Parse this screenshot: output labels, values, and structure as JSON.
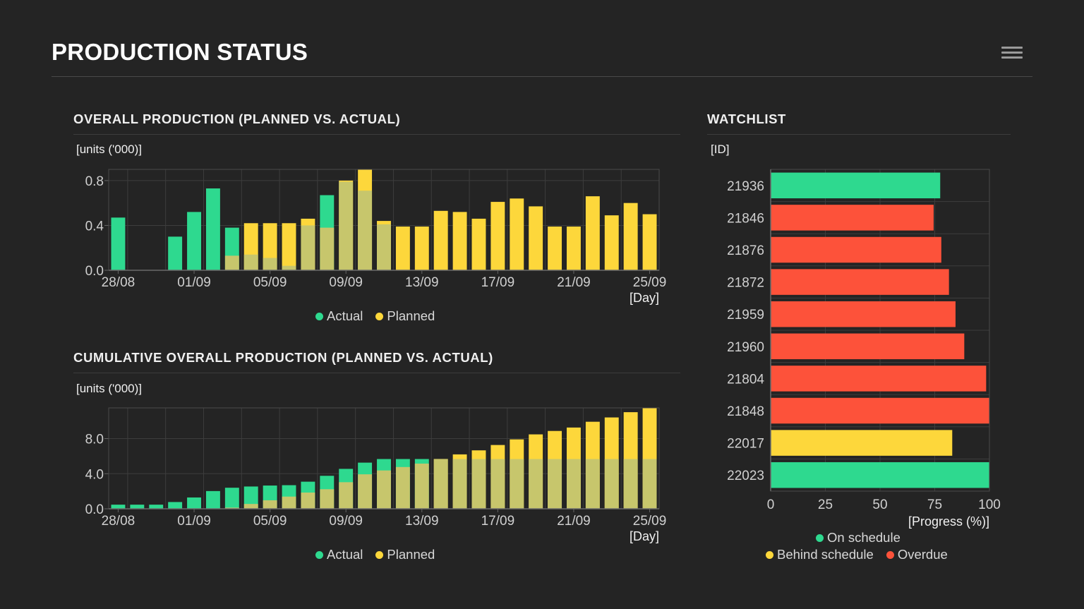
{
  "page": {
    "title": "PRODUCTION STATUS",
    "menu_icon": "hamburger-menu-icon"
  },
  "colors": {
    "actual": "#2ed98f",
    "planned": "#fdd73b",
    "overlap": "#c7c66c",
    "on_schedule": "#2ed98f",
    "behind": "#fdd73b",
    "overdue": "#fd523a"
  },
  "overall": {
    "title": "OVERALL PRODUCTION (PLANNED VS. ACTUAL)",
    "unit": "[units ('000)]",
    "legend": [
      "Actual",
      "Planned"
    ]
  },
  "cumulative": {
    "title": "CUMULATIVE OVERALL PRODUCTION (PLANNED VS. ACTUAL)",
    "unit": "[units ('000)]",
    "legend": [
      "Actual",
      "Planned"
    ]
  },
  "watchlist": {
    "title": "WATCHLIST",
    "unit": "[ID]",
    "legend": [
      "On schedule",
      "Behind schedule",
      "Overdue"
    ]
  },
  "chart_data": [
    {
      "type": "bar",
      "title": "OVERALL PRODUCTION (PLANNED VS. ACTUAL)",
      "ylabel": "[units ('000)]",
      "xlabel": "[Day]",
      "ylim": [
        0,
        0.9
      ],
      "yticks": [
        "0.0",
        "0.4",
        "0.8"
      ],
      "ytick_values": [
        0,
        0.4,
        0.8
      ],
      "xtick_labels": [
        "28/08",
        "01/09",
        "05/09",
        "09/09",
        "13/09",
        "17/09",
        "21/09",
        "25/09"
      ],
      "days": [
        "28/08",
        "29/08",
        "30/08",
        "31/08",
        "01/09",
        "02/09",
        "03/09",
        "04/09",
        "05/09",
        "06/09",
        "07/09",
        "08/09",
        "09/09",
        "10/09",
        "11/09",
        "12/09",
        "13/09",
        "14/09",
        "15/09",
        "16/09",
        "17/09",
        "18/09",
        "19/09",
        "20/09",
        "21/09",
        "22/09",
        "23/09",
        "24/09",
        "25/09"
      ],
      "series": [
        {
          "name": "Actual",
          "values": [
            0.47,
            0,
            0,
            0.3,
            0.52,
            0.73,
            0.38,
            0.14,
            0.11,
            0.04,
            0.4,
            0.67,
            0.79,
            0.71,
            0.41,
            0,
            0,
            0,
            0,
            0,
            0,
            0,
            0,
            0,
            0,
            0,
            0,
            0,
            0
          ]
        },
        {
          "name": "Planned",
          "values": [
            0,
            0,
            0,
            0,
            0,
            0,
            0.13,
            0.42,
            0.42,
            0.42,
            0.46,
            0.38,
            0.8,
            0.9,
            0.44,
            0.39,
            0.39,
            0.53,
            0.52,
            0.46,
            0.61,
            0.64,
            0.57,
            0.39,
            0.39,
            0.66,
            0.49,
            0.6,
            0.5
          ]
        }
      ],
      "legend": [
        "Actual",
        "Planned"
      ]
    },
    {
      "type": "bar",
      "title": "CUMULATIVE OVERALL PRODUCTION (PLANNED VS. ACTUAL)",
      "ylabel": "[units ('000)]",
      "xlabel": "[Day]",
      "ylim": [
        0,
        11.5
      ],
      "yticks": [
        "0.0",
        "4.0",
        "8.0"
      ],
      "ytick_values": [
        0,
        4,
        8
      ],
      "xtick_labels": [
        "28/08",
        "01/09",
        "05/09",
        "09/09",
        "13/09",
        "17/09",
        "21/09",
        "25/09"
      ],
      "days": [
        "28/08",
        "29/08",
        "30/08",
        "31/08",
        "01/09",
        "02/09",
        "03/09",
        "04/09",
        "05/09",
        "06/09",
        "07/09",
        "08/09",
        "09/09",
        "10/09",
        "11/09",
        "12/09",
        "13/09",
        "14/09",
        "15/09",
        "16/09",
        "17/09",
        "18/09",
        "19/09",
        "20/09",
        "21/09",
        "22/09",
        "23/09",
        "24/09",
        "25/09"
      ],
      "series": [
        {
          "name": "Actual",
          "values": [
            0.47,
            0.47,
            0.47,
            0.77,
            1.29,
            2.02,
            2.4,
            2.54,
            2.65,
            2.69,
            3.09,
            3.76,
            4.55,
            5.26,
            5.67,
            5.67,
            5.67,
            5.67,
            5.67,
            5.67,
            5.67,
            5.67,
            5.67,
            5.67,
            5.67,
            5.67,
            5.67,
            5.67,
            5.67
          ]
        },
        {
          "name": "Planned",
          "values": [
            0,
            0,
            0,
            0,
            0,
            0,
            0.13,
            0.55,
            0.97,
            1.39,
            1.85,
            2.23,
            3.03,
            3.93,
            4.37,
            4.76,
            5.15,
            5.68,
            6.2,
            6.66,
            7.27,
            7.91,
            8.48,
            8.87,
            9.26,
            9.92,
            10.41,
            11.01,
            11.51
          ]
        }
      ],
      "legend": [
        "Actual",
        "Planned"
      ]
    },
    {
      "type": "bar",
      "orientation": "horizontal",
      "title": "WATCHLIST",
      "ylabel": "[ID]",
      "xlabel": "[Progress (%)]",
      "xlim": [
        0,
        100
      ],
      "xticks": [
        "0",
        "25",
        "50",
        "75",
        "100"
      ],
      "xtick_values": [
        0,
        25,
        50,
        75,
        100
      ],
      "items": [
        {
          "id": "21936",
          "progress": 77.5,
          "status": "On schedule"
        },
        {
          "id": "21846",
          "progress": 74.5,
          "status": "Overdue"
        },
        {
          "id": "21876",
          "progress": 78.0,
          "status": "Overdue"
        },
        {
          "id": "21872",
          "progress": 81.5,
          "status": "Overdue"
        },
        {
          "id": "21959",
          "progress": 84.5,
          "status": "Overdue"
        },
        {
          "id": "21960",
          "progress": 88.5,
          "status": "Overdue"
        },
        {
          "id": "21804",
          "progress": 98.5,
          "status": "Overdue"
        },
        {
          "id": "21848",
          "progress": 100,
          "status": "Overdue"
        },
        {
          "id": "22017",
          "progress": 83.0,
          "status": "Behind schedule"
        },
        {
          "id": "22023",
          "progress": 100,
          "status": "On schedule"
        }
      ],
      "legend": [
        "On schedule",
        "Behind schedule",
        "Overdue"
      ]
    }
  ]
}
